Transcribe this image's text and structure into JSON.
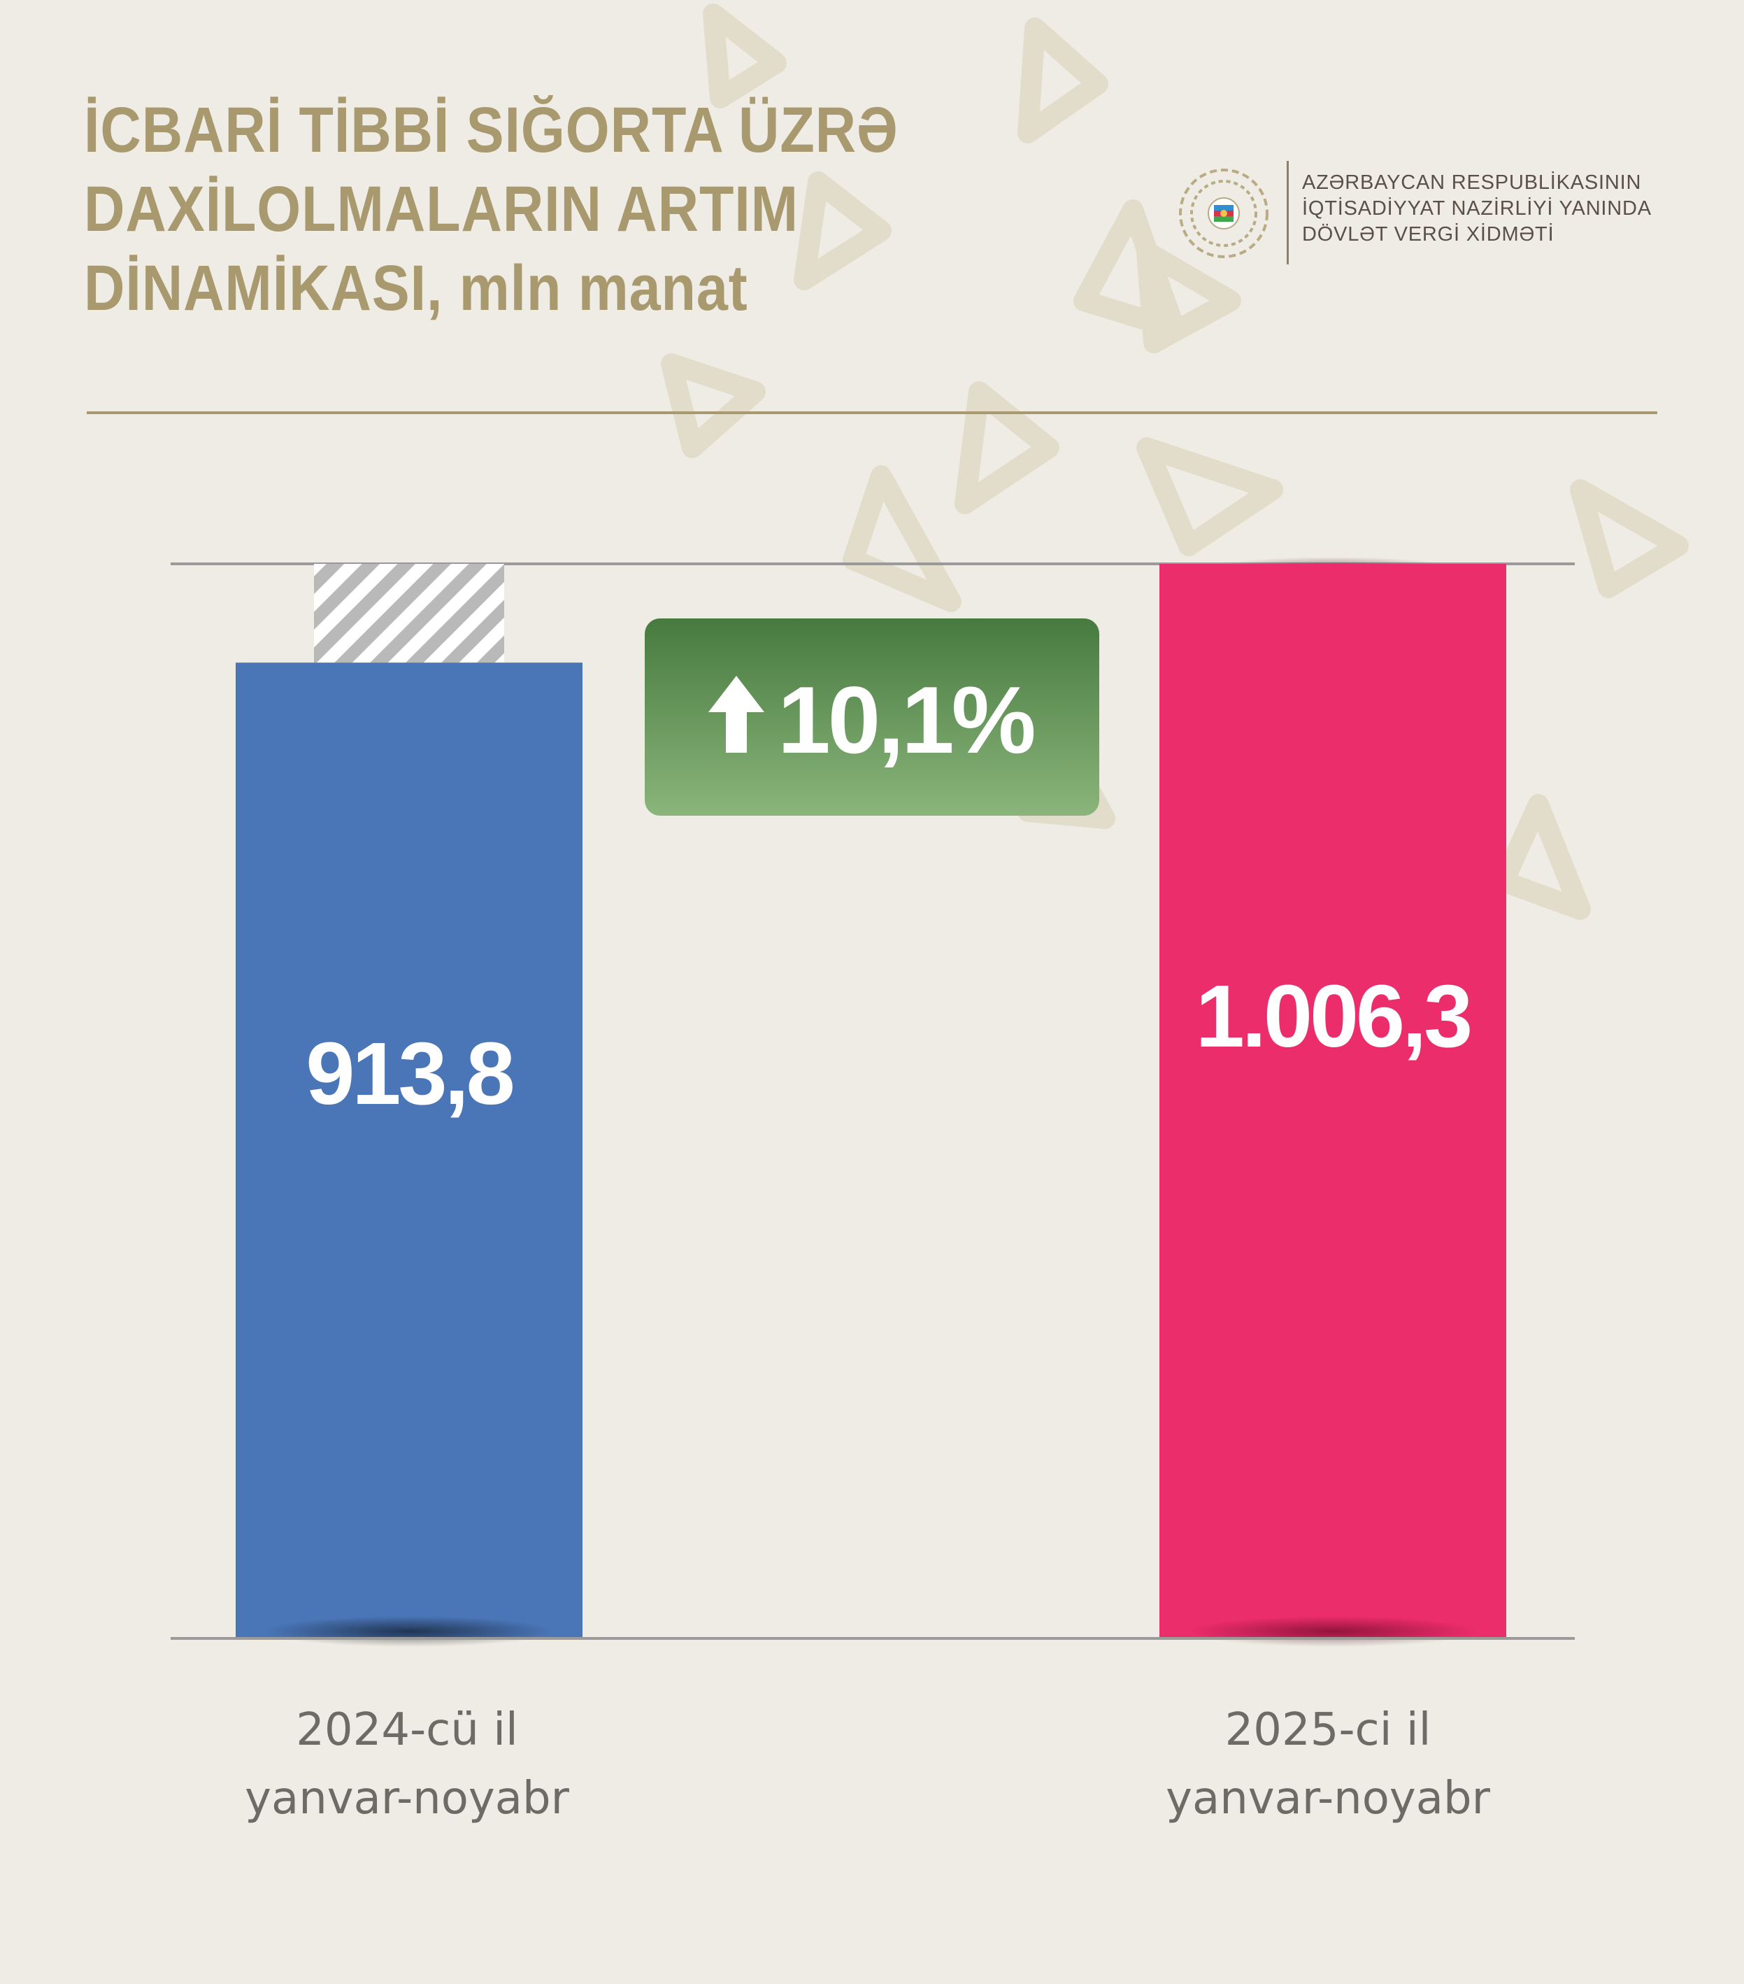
{
  "title": {
    "lines": [
      "İCBARİ TİBBİ SIĞORTA ÜZRƏ",
      "DAXİLOLMALARIN ARTIM",
      "DİNAMİKASI, mln manat"
    ]
  },
  "logo": {
    "lines": [
      "AZƏRBAYCAN RESPUBLİKASININ",
      "İQTİSADİYYAT NAZİRLİYİ YANINDA",
      "DÖVLƏT VERGİ XİDMƏTİ"
    ]
  },
  "badge": {
    "text": "10,1%",
    "icon": "arrow-up-icon",
    "color": "#5e8f4c"
  },
  "colors": {
    "title": "#a89a6e",
    "bar_2024": "#4a76b8",
    "bar_2025": "#ec2d6b",
    "axis": "#9a9a9a",
    "background": "#eeece4"
  },
  "chart_data": {
    "type": "bar",
    "categories": [
      [
        "2024-cü il",
        "yanvar-noyabr"
      ],
      [
        "2025-ci il",
        "yanvar-noyabr"
      ]
    ],
    "values": [
      913.8,
      1006.3
    ],
    "value_labels": [
      "913,8",
      "1.006,3"
    ],
    "growth_label": "10,1%",
    "ylim": [
      0,
      1006.3
    ],
    "grid": false,
    "legend": "none"
  }
}
